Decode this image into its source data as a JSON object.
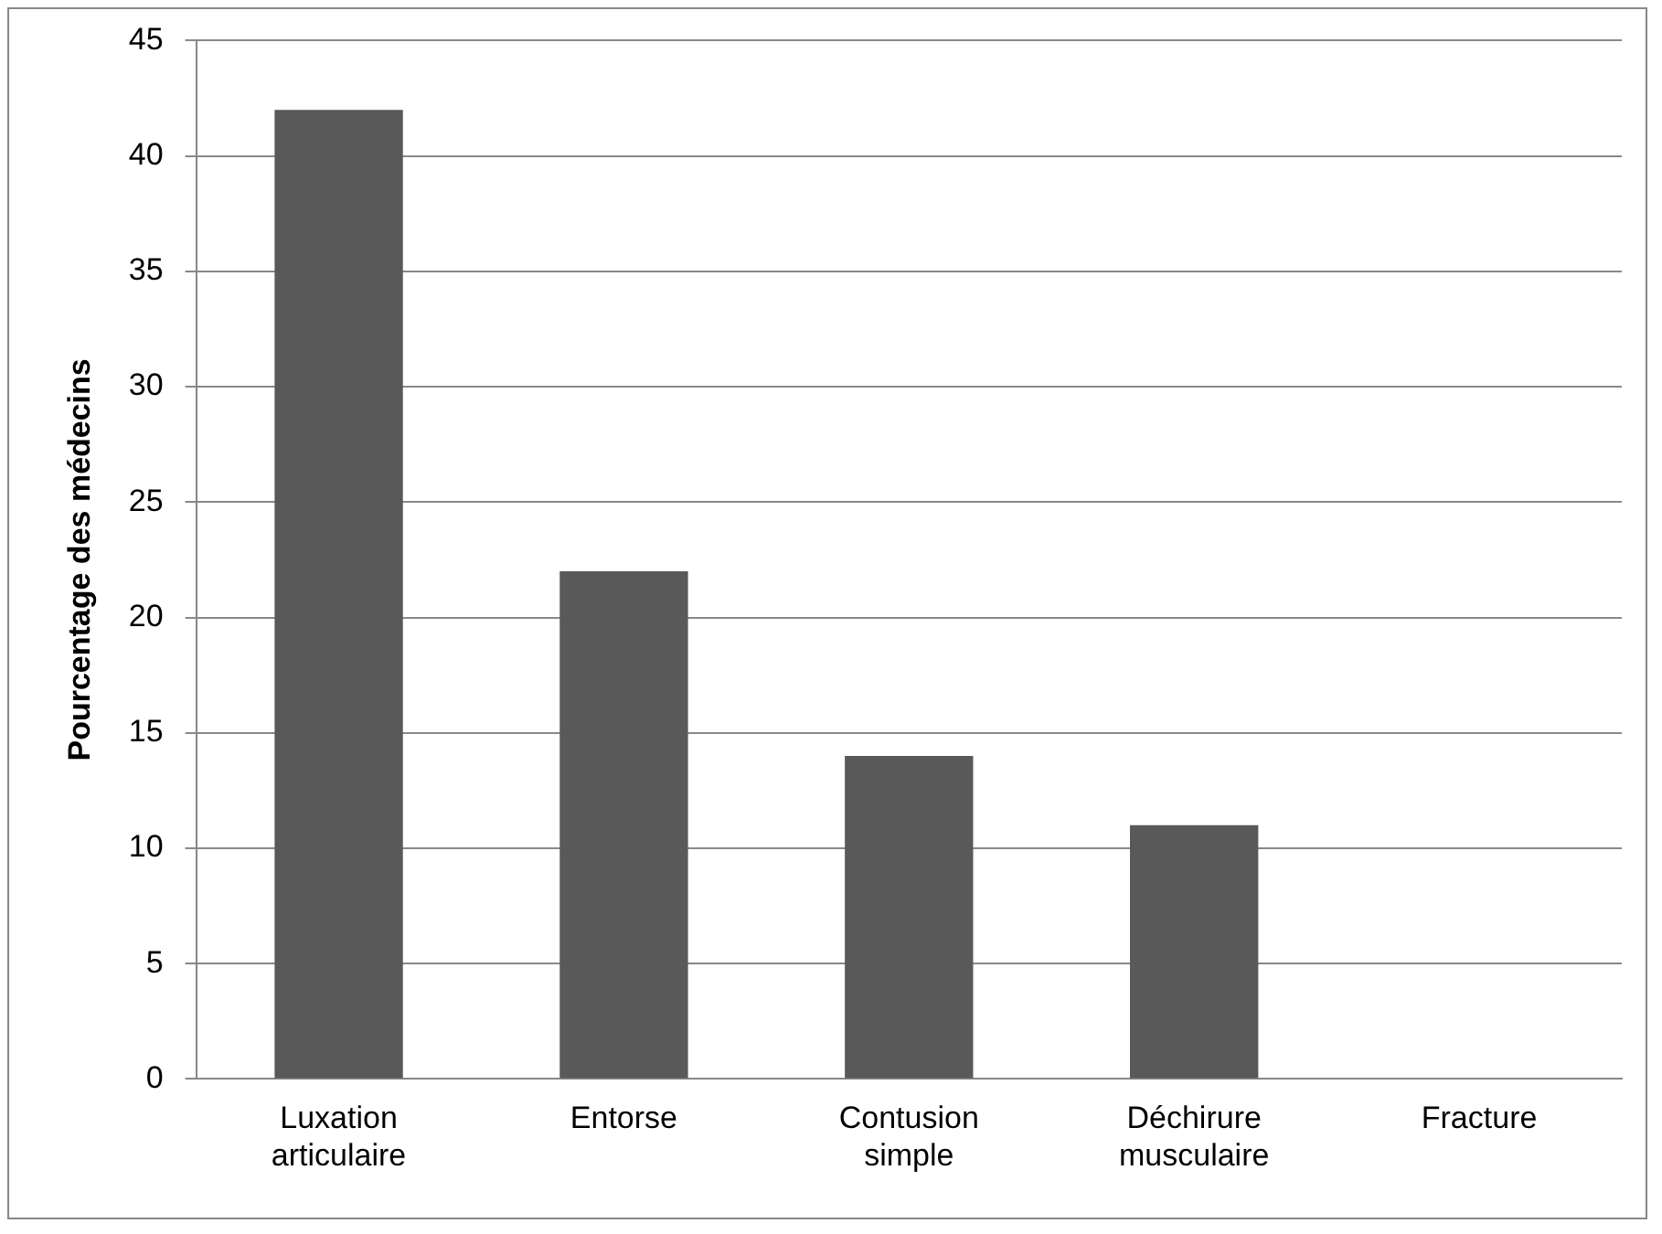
{
  "chart_data": {
    "type": "bar",
    "ylabel": "Pourcentage des médecins",
    "categories": [
      "Luxation articulaire",
      "Entorse",
      "Contusion simple",
      "Déchirure musculaire",
      "Fracture"
    ],
    "values": [
      42,
      22,
      14,
      11,
      0
    ],
    "color": "#595959",
    "ylim": [
      0,
      45
    ],
    "yticks": [
      0,
      5,
      10,
      15,
      20,
      25,
      30,
      35,
      40,
      45
    ],
    "grid": "y",
    "legend": false
  }
}
